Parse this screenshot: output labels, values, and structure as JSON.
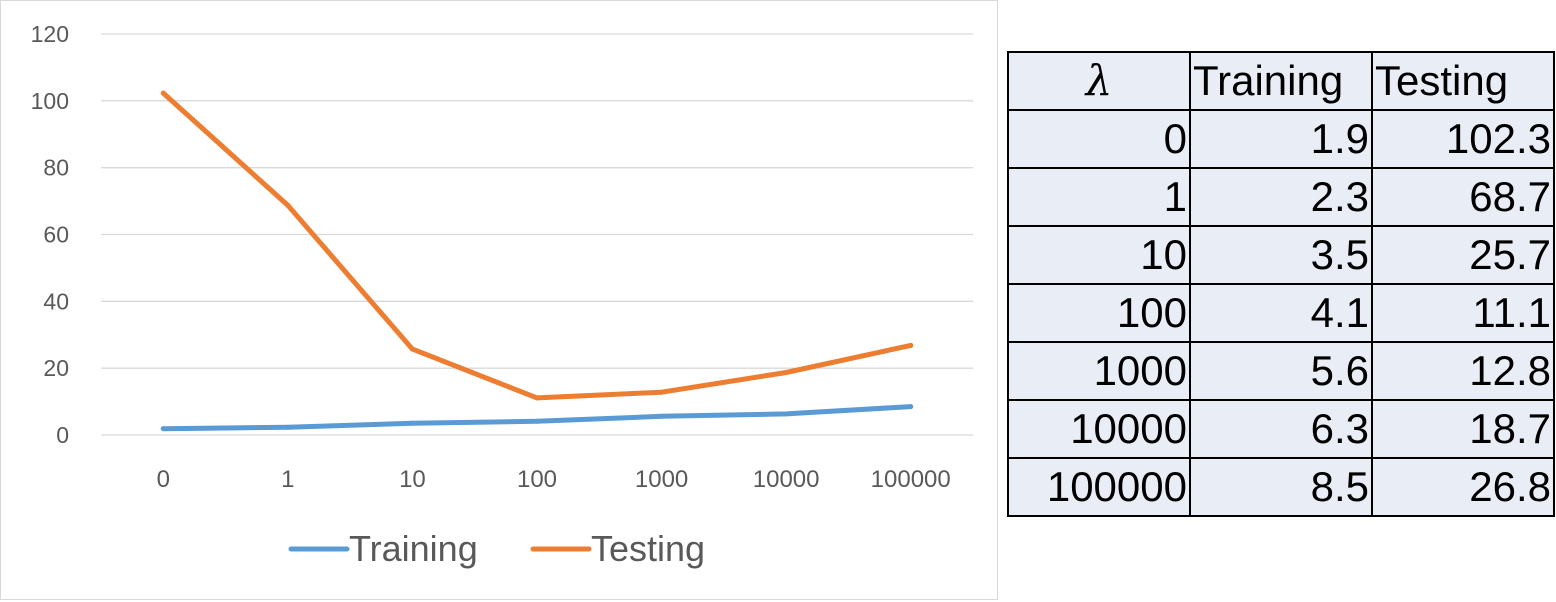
{
  "chart_data": {
    "type": "line",
    "title": "",
    "xlabel": "",
    "ylabel": "",
    "categories": [
      "0",
      "1",
      "10",
      "100",
      "1000",
      "10000",
      "100000"
    ],
    "ylim": [
      0,
      120
    ],
    "yticks": [
      "0",
      "20",
      "40",
      "60",
      "80",
      "100",
      "120"
    ],
    "grid": true,
    "legend_position": "bottom",
    "series": [
      {
        "name": "Training",
        "color": "#5b9bd5",
        "values": [
          1.9,
          2.3,
          3.5,
          4.1,
          5.6,
          6.3,
          8.5
        ]
      },
      {
        "name": "Testing",
        "color": "#ed7d31",
        "values": [
          102.3,
          68.7,
          25.7,
          11.1,
          12.8,
          18.7,
          26.8
        ]
      }
    ]
  },
  "table": {
    "headers": [
      "λ",
      "Training",
      "Testing"
    ],
    "rows": [
      [
        "0",
        "1.9",
        "102.3"
      ],
      [
        "1",
        "2.3",
        "68.7"
      ],
      [
        "10",
        "3.5",
        "25.7"
      ],
      [
        "100",
        "4.1",
        "11.1"
      ],
      [
        "1000",
        "5.6",
        "12.8"
      ],
      [
        "10000",
        "6.3",
        "18.7"
      ],
      [
        "100000",
        "8.5",
        "26.8"
      ]
    ]
  }
}
